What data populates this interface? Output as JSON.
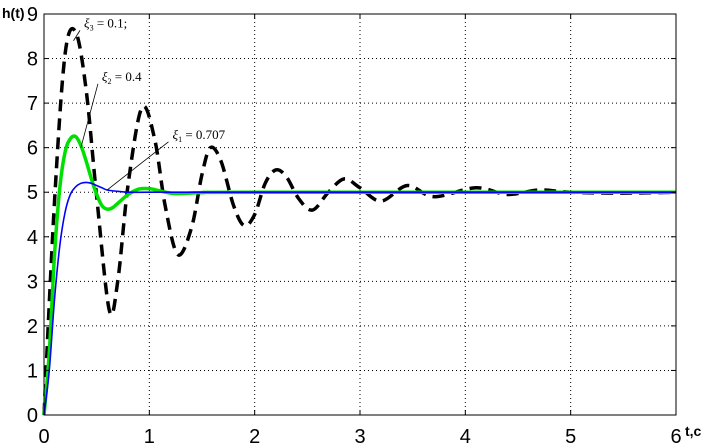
{
  "chart_data": {
    "type": "line",
    "title": "",
    "xlabel": "t,c",
    "ylabel": "h(t)",
    "xlim": [
      0,
      6
    ],
    "ylim": [
      0,
      9
    ],
    "grid": true,
    "x_ticks": [
      "0",
      "1",
      "2",
      "3",
      "4",
      "5",
      "6"
    ],
    "y_ticks": [
      "0",
      "1",
      "2",
      "3",
      "4",
      "5",
      "6",
      "7",
      "8",
      "9"
    ],
    "series": [
      {
        "name": "",
        "color": "#000000",
        "style": "dashed",
        "x": [
          0,
          0.1,
          0.2,
          0.3,
          0.4,
          0.5,
          0.62,
          0.7,
          0.8,
          0.93,
          1.05,
          1.15,
          1.27,
          1.4,
          1.5,
          1.58,
          1.68,
          1.8,
          1.9,
          2.0,
          2.1,
          2.2,
          2.3,
          2.42,
          2.55,
          2.7,
          2.85,
          3.0,
          3.2,
          3.45,
          3.7,
          4.1,
          4.4,
          4.7,
          5.0,
          5.5,
          6.0
        ],
        "values": [
          0,
          4.8,
          8.1,
          8.6,
          7.3,
          4.9,
          2.35,
          3.0,
          5.2,
          6.9,
          6.2,
          4.7,
          3.6,
          4.2,
          5.4,
          6.0,
          5.7,
          4.7,
          4.25,
          4.5,
          5.2,
          5.5,
          5.35,
          4.85,
          4.6,
          5.0,
          5.3,
          5.1,
          4.8,
          5.15,
          4.9,
          5.1,
          4.95,
          5.05,
          5.0,
          4.98,
          5.0
        ]
      },
      {
        "name": "",
        "color": "#00e000",
        "style": "solid",
        "x": [
          0,
          0.05,
          0.1,
          0.15,
          0.2,
          0.25,
          0.3,
          0.35,
          0.4,
          0.45,
          0.5,
          0.55,
          0.6,
          0.65,
          0.7,
          0.8,
          0.9,
          1.0,
          1.1,
          1.2,
          1.3,
          1.5,
          2.0,
          6.0
        ],
        "values": [
          0,
          1.4,
          3.6,
          5.1,
          5.9,
          6.2,
          6.25,
          6.05,
          5.7,
          5.3,
          4.95,
          4.7,
          4.62,
          4.65,
          4.75,
          4.95,
          5.07,
          5.08,
          5.03,
          4.98,
          4.97,
          4.99,
          5.0,
          5.0
        ]
      },
      {
        "name": "",
        "color": "#0000ff",
        "style": "solid",
        "x": [
          0,
          0.05,
          0.1,
          0.15,
          0.2,
          0.25,
          0.3,
          0.35,
          0.4,
          0.45,
          0.5,
          0.55,
          0.6,
          0.7,
          0.8,
          1.0,
          1.5,
          2.0,
          6.0
        ],
        "values": [
          0,
          1.0,
          2.6,
          3.8,
          4.55,
          4.95,
          5.12,
          5.2,
          5.22,
          5.2,
          5.15,
          5.1,
          5.05,
          5.02,
          5.0,
          5.0,
          5.0,
          5.0,
          5.0
        ]
      }
    ],
    "annotations": [
      {
        "symbol": "ξ",
        "subscript": "3",
        "text": " = 0.1;",
        "at": [
          0.38,
          8.7
        ]
      },
      {
        "symbol": "ξ",
        "subscript": "2",
        "text": " = 0.4",
        "at": [
          0.55,
          7.5
        ]
      },
      {
        "symbol": "ξ",
        "subscript": "1",
        "text": " = 0.707",
        "at": [
          1.22,
          6.2
        ]
      }
    ]
  }
}
